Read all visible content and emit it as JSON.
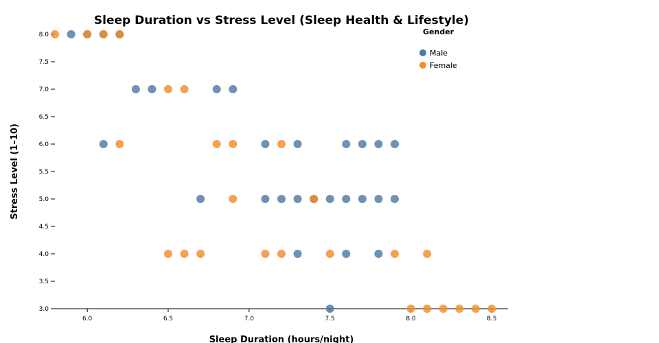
{
  "chart_data": {
    "type": "scatter",
    "title": "Sleep Duration vs Stress Level (Sleep Health & Lifestyle)",
    "xlabel": "Sleep Duration (hours/night)",
    "ylabel": "Stress Level (1–10)",
    "xlim": [
      5.8,
      8.6
    ],
    "ylim": [
      3.0,
      8.0
    ],
    "xticks": [
      "6.0",
      "6.5",
      "7.0",
      "7.5",
      "8.0",
      "8.5"
    ],
    "yticks": [
      "3.0",
      "3.5",
      "4.0",
      "4.5",
      "5.0",
      "5.5",
      "6.0",
      "6.5",
      "7.0",
      "7.5",
      "8.0"
    ],
    "legend": {
      "title": "Gender",
      "position": "top-right"
    },
    "series": [
      {
        "name": "Male",
        "color": "#4e79a7",
        "points": [
          [
            5.9,
            8
          ],
          [
            6.0,
            8
          ],
          [
            6.1,
            8
          ],
          [
            6.2,
            8
          ],
          [
            6.3,
            7
          ],
          [
            6.4,
            7
          ],
          [
            6.8,
            7
          ],
          [
            6.9,
            7
          ],
          [
            6.1,
            6
          ],
          [
            7.1,
            6
          ],
          [
            7.3,
            6
          ],
          [
            7.6,
            6
          ],
          [
            7.7,
            6
          ],
          [
            7.8,
            6
          ],
          [
            7.9,
            6
          ],
          [
            6.7,
            5
          ],
          [
            7.1,
            5
          ],
          [
            7.2,
            5
          ],
          [
            7.3,
            5
          ],
          [
            7.4,
            5
          ],
          [
            7.5,
            5
          ],
          [
            7.6,
            5
          ],
          [
            7.7,
            5
          ],
          [
            7.8,
            5
          ],
          [
            7.9,
            5
          ],
          [
            7.3,
            4
          ],
          [
            7.6,
            4
          ],
          [
            7.8,
            4
          ],
          [
            7.5,
            3
          ]
        ]
      },
      {
        "name": "Female",
        "color": "#f28e2b",
        "points": [
          [
            5.8,
            8
          ],
          [
            6.0,
            8
          ],
          [
            6.1,
            8
          ],
          [
            6.2,
            8
          ],
          [
            6.5,
            7
          ],
          [
            6.6,
            7
          ],
          [
            6.2,
            6
          ],
          [
            6.8,
            6
          ],
          [
            6.9,
            6
          ],
          [
            7.2,
            6
          ],
          [
            6.9,
            5
          ],
          [
            7.4,
            5
          ],
          [
            6.5,
            4
          ],
          [
            6.6,
            4
          ],
          [
            6.7,
            4
          ],
          [
            7.1,
            4
          ],
          [
            7.2,
            4
          ],
          [
            7.5,
            4
          ],
          [
            7.9,
            4
          ],
          [
            8.1,
            4
          ],
          [
            8.0,
            3
          ],
          [
            8.1,
            3
          ],
          [
            8.2,
            3
          ],
          [
            8.3,
            3
          ],
          [
            8.4,
            3
          ],
          [
            8.5,
            3
          ]
        ]
      }
    ]
  }
}
